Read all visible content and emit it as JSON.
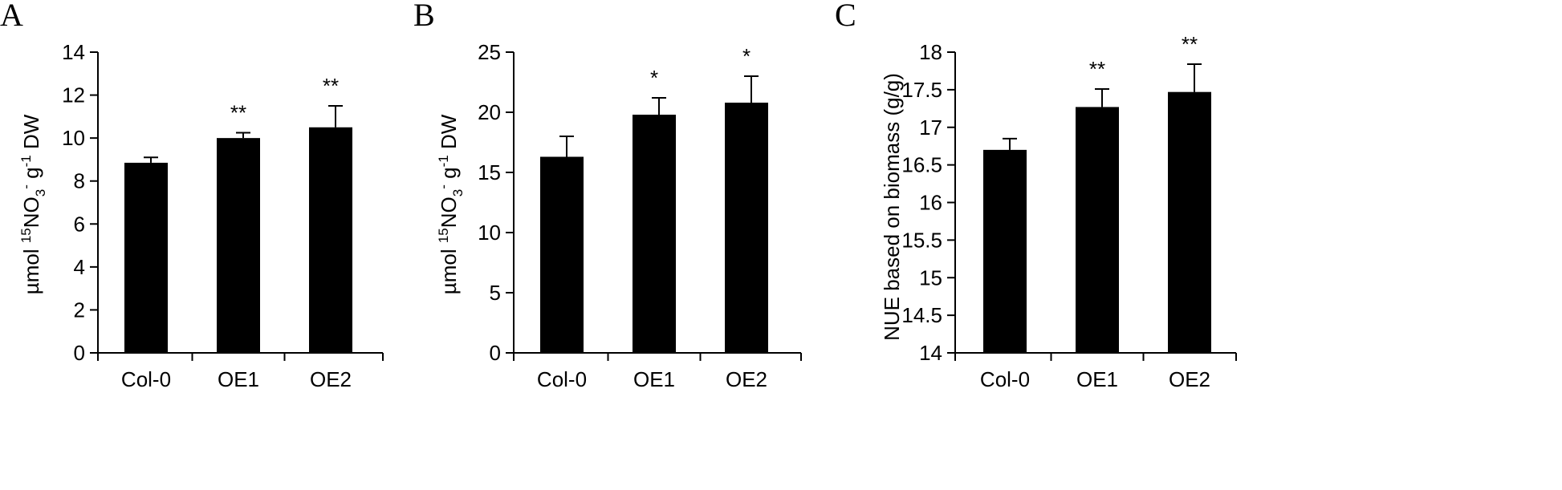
{
  "chart_data": [
    {
      "type": "bar",
      "panel": "A",
      "ylabel": {
        "pre": "µmol ",
        "sup1": "15",
        "mid1": "NO",
        "sub": "3",
        "sup2": "-",
        "mid2": " g",
        "sup3": "-1",
        "post": " DW"
      },
      "categories": [
        "Col-0",
        "OE1",
        "OE2"
      ],
      "values": [
        8.85,
        10.0,
        10.5
      ],
      "errors": [
        0.25,
        0.25,
        1.0
      ],
      "significance": [
        "",
        "**",
        "**"
      ],
      "ylim": [
        0,
        14
      ],
      "yticks": [
        "0",
        "2",
        "4",
        "6",
        "8",
        "10",
        "12",
        "14"
      ]
    },
    {
      "type": "bar",
      "panel": "B",
      "ylabel": {
        "pre": "µmol ",
        "sup1": "15",
        "mid1": "NO",
        "sub": "3",
        "sup2": "-",
        "mid2": " g",
        "sup3": "-1",
        "post": " DW"
      },
      "categories": [
        "Col-0",
        "OE1",
        "OE2"
      ],
      "values": [
        16.3,
        19.8,
        20.8
      ],
      "errors": [
        1.7,
        1.4,
        2.2
      ],
      "significance": [
        "",
        "*",
        "*"
      ],
      "ylim": [
        0,
        25
      ],
      "yticks": [
        "0",
        "5",
        "10",
        "15",
        "20",
        "25"
      ]
    },
    {
      "type": "bar",
      "panel": "C",
      "ylabel": {
        "text": "NUE based on biomass (g/g)"
      },
      "categories": [
        "Col-0",
        "OE1",
        "OE2"
      ],
      "values": [
        16.7,
        17.27,
        17.47
      ],
      "errors": [
        0.15,
        0.24,
        0.37
      ],
      "significance": [
        "",
        "**",
        "**"
      ],
      "ylim": [
        14,
        18
      ],
      "yticks": [
        "14",
        "14.5",
        "15",
        "15.5",
        "16",
        "16.5",
        "17",
        "17.5",
        "18"
      ]
    }
  ]
}
